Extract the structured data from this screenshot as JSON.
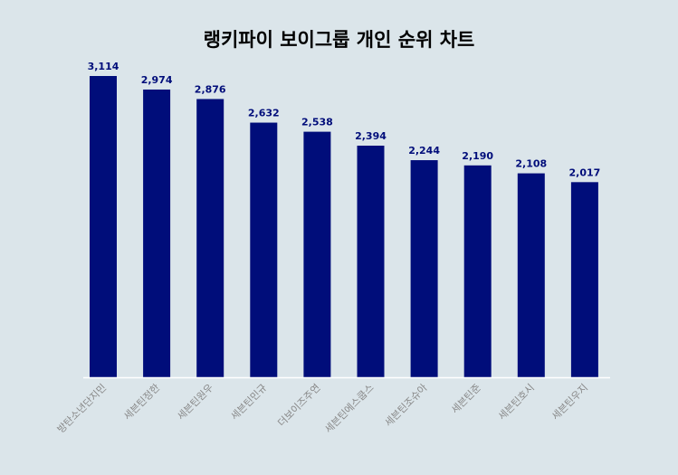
{
  "title": "랭키파이 보이그룹 개인 순위 차트",
  "chart_data": {
    "type": "bar",
    "title": "랭키파이 보이그룹 개인 순위 차트",
    "categories": [
      "방탄소년단지민",
      "세븐틴정한",
      "세븐틴원우",
      "세븐틴민규",
      "더보이즈주연",
      "세븐틴에스쿱스",
      "세븐틴조슈아",
      "세븐틴준",
      "세븐틴호시",
      "세븐틴우지"
    ],
    "values": [
      3114,
      2974,
      2876,
      2632,
      2538,
      2394,
      2244,
      2190,
      2108,
      2017
    ],
    "value_labels": [
      "3,114",
      "2,974",
      "2,876",
      "2,632",
      "2,538",
      "2,394",
      "2,244",
      "2,190",
      "2,108",
      "2,017"
    ],
    "ylim": [
      0,
      3114
    ],
    "grid": false,
    "legend": "none",
    "colors": {
      "bar": "#000d7a",
      "value_label": "#000d7a",
      "axis": "#ffffff",
      "category_label": "#888888"
    }
  }
}
